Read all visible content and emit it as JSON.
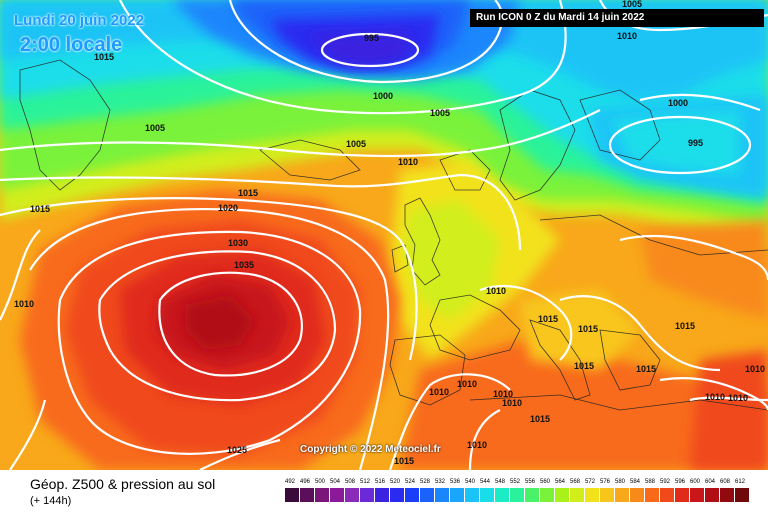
{
  "header": {
    "date": "Lundi 20 juin 2022",
    "local_time": "2:00 locale",
    "run": "Run ICON 0 Z du Mardi 14 juin 2022"
  },
  "copyright": "Copyright © 2022 Meteociel.fr",
  "legend": {
    "title": "Géop. Z500 & pression au sol",
    "subtitle": "(+ 144h)",
    "scale_values": [
      "492",
      "496",
      "500",
      "504",
      "508",
      "512",
      "516",
      "520",
      "524",
      "528",
      "532",
      "536",
      "540",
      "544",
      "548",
      "552",
      "556",
      "560",
      "564",
      "568",
      "572",
      "576",
      "580",
      "584",
      "588",
      "592",
      "596",
      "600",
      "604",
      "608",
      "612"
    ],
    "scale_colors": [
      "#3a0a3a",
      "#5a0f5a",
      "#7a157a",
      "#8a1a9a",
      "#8a2ab8",
      "#6a2ad8",
      "#3a22e0",
      "#2a2af0",
      "#1a3ef8",
      "#1a62fa",
      "#1a86fc",
      "#1aa6fc",
      "#1ac4f6",
      "#1addea",
      "#1aecc6",
      "#2af29a",
      "#4af26a",
      "#7af23a",
      "#a8f21a",
      "#d2ee1a",
      "#f2e21a",
      "#f8c61a",
      "#f8a81a",
      "#f88a1a",
      "#f86a1a",
      "#f04a1a",
      "#e02a1a",
      "#c8161a",
      "#b00e14",
      "#900a10",
      "#700a0a"
    ]
  },
  "isobars": {
    "labels": [
      "995",
      "1000",
      "1005",
      "1010",
      "1015",
      "1020",
      "1025",
      "1030",
      "1035",
      "1010",
      "1000",
      "995",
      "1005",
      "1005",
      "1015",
      "1015",
      "1010",
      "1010",
      "1015",
      "1015",
      "1015",
      "1015",
      "1010",
      "1010",
      "1010",
      "1010",
      "1015",
      "1010",
      "1015",
      "1010",
      "1010",
      "1010",
      "1005",
      "1015"
    ]
  }
}
